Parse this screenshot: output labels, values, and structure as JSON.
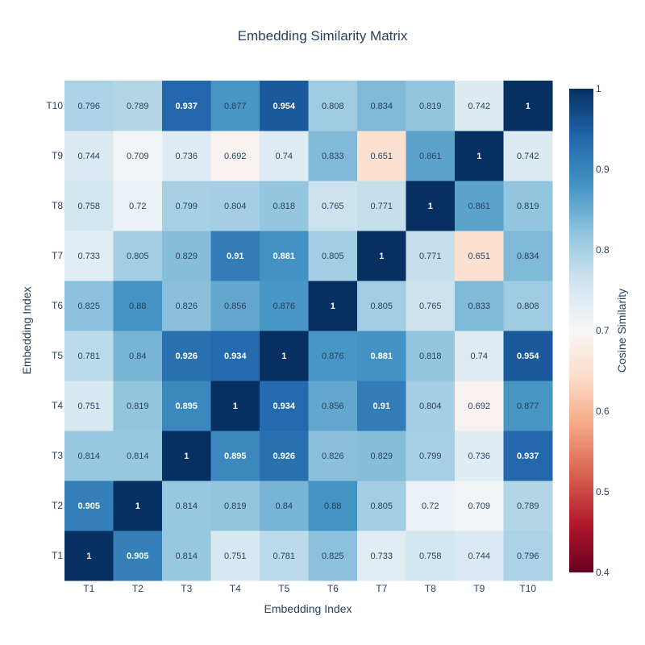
{
  "chart_data": {
    "type": "heatmap",
    "title": "Embedding Similarity Matrix",
    "xlabel": "Embedding Index",
    "ylabel": "Embedding Index",
    "x_categories": [
      "T1",
      "T2",
      "T3",
      "T4",
      "T5",
      "T6",
      "T7",
      "T8",
      "T9",
      "T10"
    ],
    "y_categories": [
      "T1",
      "T2",
      "T3",
      "T4",
      "T5",
      "T6",
      "T7",
      "T8",
      "T9",
      "T10"
    ],
    "z": [
      [
        1,
        0.905,
        0.814,
        0.751,
        0.781,
        0.825,
        0.733,
        0.758,
        0.744,
        0.796
      ],
      [
        0.905,
        1,
        0.814,
        0.819,
        0.84,
        0.88,
        0.805,
        0.72,
        0.709,
        0.789
      ],
      [
        0.814,
        0.814,
        1,
        0.895,
        0.926,
        0.826,
        0.829,
        0.799,
        0.736,
        0.937
      ],
      [
        0.751,
        0.819,
        0.895,
        1,
        0.934,
        0.856,
        0.91,
        0.804,
        0.692,
        0.877
      ],
      [
        0.781,
        0.84,
        0.926,
        0.934,
        1,
        0.876,
        0.881,
        0.818,
        0.74,
        0.954
      ],
      [
        0.825,
        0.88,
        0.826,
        0.856,
        0.876,
        1,
        0.805,
        0.765,
        0.833,
        0.808
      ],
      [
        0.733,
        0.805,
        0.829,
        0.91,
        0.881,
        0.805,
        1,
        0.771,
        0.651,
        0.834
      ],
      [
        0.758,
        0.72,
        0.799,
        0.804,
        0.818,
        0.765,
        0.771,
        1,
        0.861,
        0.819
      ],
      [
        0.744,
        0.709,
        0.736,
        0.692,
        0.74,
        0.833,
        0.651,
        0.861,
        1,
        0.742
      ],
      [
        0.796,
        0.789,
        0.937,
        0.877,
        0.954,
        0.808,
        0.834,
        0.819,
        0.742,
        1
      ]
    ],
    "colorscale": "RdBu",
    "zmin": 0.4,
    "zmax": 1,
    "colorbar": {
      "title": "Cosine Similarity",
      "ticks": [
        0.4,
        0.5,
        0.6,
        0.7,
        0.8,
        0.9,
        1
      ]
    },
    "colors": {
      "background": "#ffffff",
      "text": "#2a3f5f"
    }
  }
}
